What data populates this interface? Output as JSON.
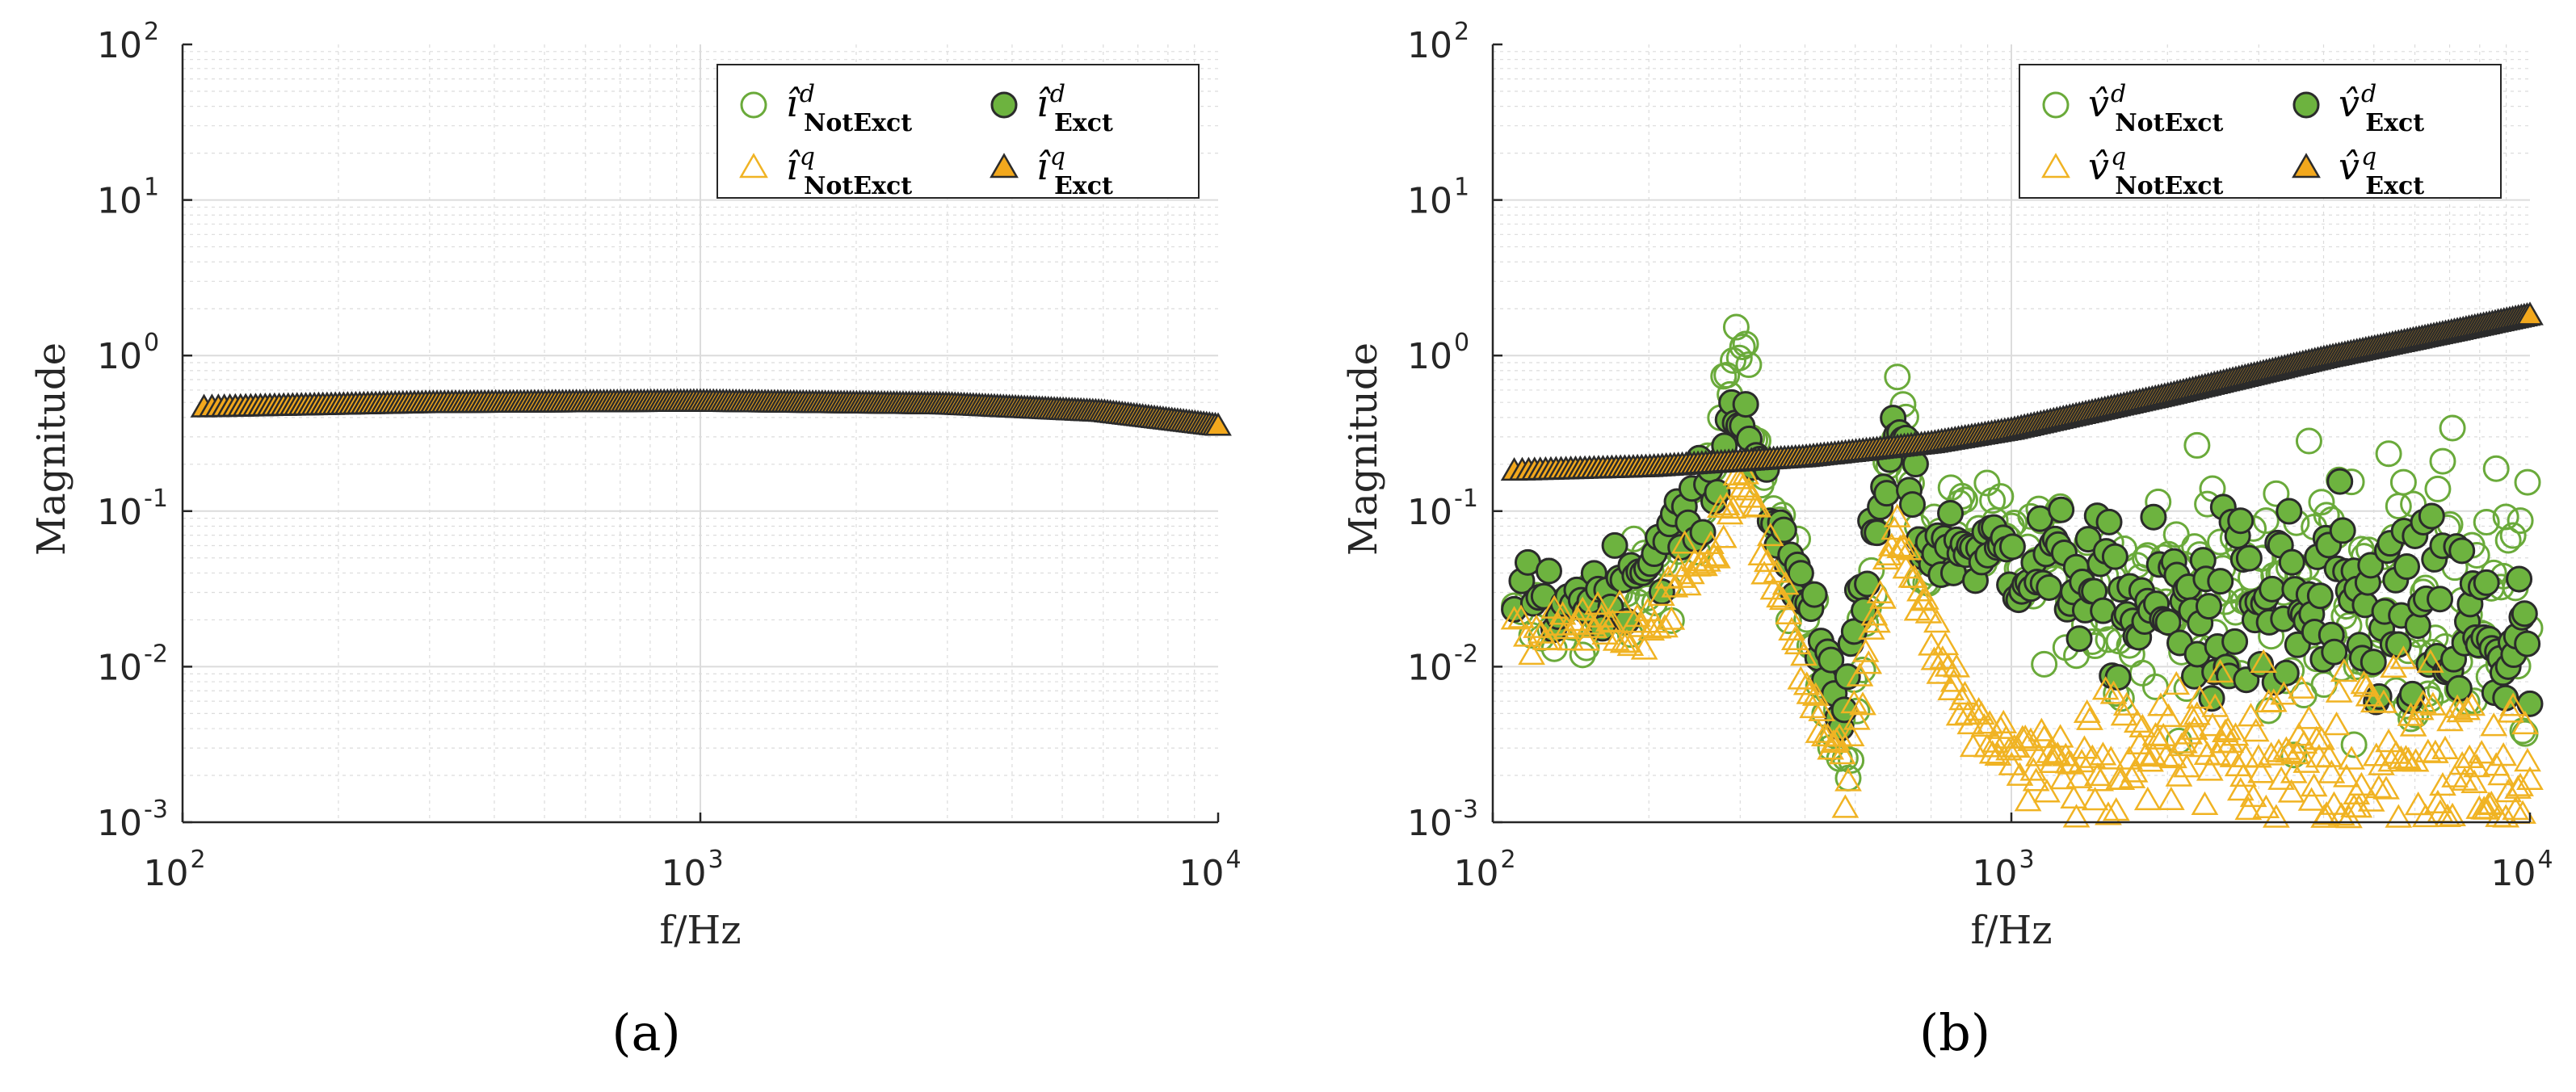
{
  "colors": {
    "green": "#6aaa3a",
    "green_fill": "#6db33f",
    "orange": "#f0b323",
    "orange_fill": "#f2a81d",
    "edge": "#2b2b2b",
    "grid": "#dcdcdc",
    "axis": "#262626"
  },
  "chart_data": [
    {
      "panel": "a",
      "type": "scatter",
      "caption": "(a)",
      "xscale": "log",
      "yscale": "log",
      "xlim": [
        100,
        10000
      ],
      "ylim": [
        0.001,
        100
      ],
      "xlabel": "f/Hz",
      "ylabel": "Magnitude",
      "x_ticks": [
        {
          "base": "10",
          "exp": "2"
        },
        {
          "base": "10",
          "exp": "3"
        },
        {
          "base": "10",
          "exp": "4"
        }
      ],
      "y_ticks": [
        {
          "base": "10",
          "exp": "-3"
        },
        {
          "base": "10",
          "exp": "-2"
        },
        {
          "base": "10",
          "exp": "-1"
        },
        {
          "base": "10",
          "exp": "0"
        },
        {
          "base": "10",
          "exp": "1"
        },
        {
          "base": "10",
          "exp": "2"
        }
      ],
      "grid": true,
      "legend_position": "top-right",
      "legend": [
        {
          "symbol": "î",
          "sup": "d",
          "sub": "NotExct",
          "marker": "circle-open"
        },
        {
          "symbol": "î",
          "sup": "d",
          "sub": "Exct",
          "marker": "circle-filled"
        },
        {
          "symbol": "î",
          "sup": "q",
          "sub": "NotExct",
          "marker": "triangle-open"
        },
        {
          "symbol": "î",
          "sup": "q",
          "sub": "Exct",
          "marker": "triangle-filled"
        }
      ],
      "series": [
        {
          "name": "i_q_Exct",
          "marker": "triangle-filled",
          "x_start": 110,
          "x_end": 10000,
          "count": 300,
          "y_points": [
            [
              110,
              0.46
            ],
            [
              300,
              0.49
            ],
            [
              1000,
              0.5
            ],
            [
              3000,
              0.48
            ],
            [
              6000,
              0.43
            ],
            [
              10000,
              0.35
            ]
          ]
        },
        {
          "name": "i_q_NotExct",
          "marker": "triangle-open",
          "note": "overlapped by Exct markers",
          "x_start": 110,
          "x_end": 10000,
          "count": 0,
          "y_points": []
        },
        {
          "name": "i_d_Exct",
          "marker": "circle-filled",
          "note": "below axis range",
          "x_start": 110,
          "x_end": 10000,
          "count": 0,
          "y_points": []
        },
        {
          "name": "i_d_NotExct",
          "marker": "circle-open",
          "note": "below axis range",
          "x_start": 110,
          "x_end": 10000,
          "count": 0,
          "y_points": []
        }
      ]
    },
    {
      "panel": "b",
      "type": "scatter",
      "caption": "(b)",
      "xscale": "log",
      "yscale": "log",
      "xlim": [
        100,
        10000
      ],
      "ylim": [
        0.001,
        100
      ],
      "xlabel": "f/Hz",
      "ylabel": "Magnitude",
      "x_ticks": [
        {
          "base": "10",
          "exp": "2"
        },
        {
          "base": "10",
          "exp": "3"
        },
        {
          "base": "10",
          "exp": "4"
        }
      ],
      "y_ticks": [
        {
          "base": "10",
          "exp": "-3"
        },
        {
          "base": "10",
          "exp": "-2"
        },
        {
          "base": "10",
          "exp": "-1"
        },
        {
          "base": "10",
          "exp": "0"
        },
        {
          "base": "10",
          "exp": "1"
        },
        {
          "base": "10",
          "exp": "2"
        }
      ],
      "grid": true,
      "legend_position": "top-right",
      "legend": [
        {
          "symbol": "v̂",
          "sup": "d",
          "sub": "NotExct",
          "marker": "circle-open"
        },
        {
          "symbol": "v̂",
          "sup": "d",
          "sub": "Exct",
          "marker": "circle-filled"
        },
        {
          "symbol": "v̂",
          "sup": "q",
          "sub": "NotExct",
          "marker": "triangle-open"
        },
        {
          "symbol": "v̂",
          "sup": "q",
          "sub": "Exct",
          "marker": "triangle-filled"
        }
      ],
      "series": [
        {
          "name": "v_q_Exct",
          "marker": "triangle-filled",
          "x_start": 110,
          "x_end": 10000,
          "count": 300,
          "y_points": [
            [
              110,
              0.18
            ],
            [
              200,
              0.19
            ],
            [
              400,
              0.22
            ],
            [
              700,
              0.27
            ],
            [
              1000,
              0.33
            ],
            [
              2000,
              0.55
            ],
            [
              4000,
              0.95
            ],
            [
              7000,
              1.4
            ],
            [
              10000,
              1.8
            ]
          ]
        },
        {
          "name": "v_q_NotExct",
          "marker": "triangle-open",
          "x_start": 110,
          "x_end": 10000,
          "count": 360,
          "y_points": [
            [
              110,
              0.014
            ],
            [
              200,
              0.02
            ],
            [
              260,
              0.05
            ],
            [
              300,
              0.16
            ],
            [
              340,
              0.05
            ],
            [
              420,
              0.006
            ],
            [
              480,
              0.002
            ],
            [
              560,
              0.03
            ],
            [
              600,
              0.1
            ],
            [
              680,
              0.02
            ],
            [
              850,
              0.004
            ],
            [
              1100,
              0.0025
            ],
            [
              1350,
              0.002
            ],
            [
              1500,
              0.0025
            ],
            [
              2000,
              0.003
            ],
            [
              5000,
              0.003
            ],
            [
              10000,
              0.002
            ]
          ],
          "spread": 0.55
        },
        {
          "name": "v_d_Exct",
          "marker": "circle-filled",
          "x_start": 110,
          "x_end": 10000,
          "count": 320,
          "y_points": [
            [
              110,
              0.025
            ],
            [
              160,
              0.03
            ],
            [
              200,
              0.05
            ],
            [
              260,
              0.12
            ],
            [
              300,
              0.6
            ],
            [
              340,
              0.1
            ],
            [
              400,
              0.03
            ],
            [
              470,
              0.006
            ],
            [
              530,
              0.04
            ],
            [
              600,
              0.35
            ],
            [
              680,
              0.06
            ],
            [
              800,
              0.06
            ],
            [
              1000,
              0.05
            ],
            [
              1300,
              0.04
            ],
            [
              1600,
              0.025
            ],
            [
              3000,
              0.022
            ],
            [
              6000,
              0.02
            ],
            [
              10000,
              0.012
            ]
          ],
          "spread": 0.7
        },
        {
          "name": "v_d_NotExct",
          "marker": "circle-open",
          "x_start": 110,
          "x_end": 10000,
          "count": 360,
          "y_points": [
            [
              110,
              0.017
            ],
            [
              180,
              0.025
            ],
            [
              250,
              0.08
            ],
            [
              300,
              1.2
            ],
            [
              350,
              0.08
            ],
            [
              430,
              0.01
            ],
            [
              480,
              0.003
            ],
            [
              550,
              0.05
            ],
            [
              600,
              0.6
            ],
            [
              680,
              0.05
            ],
            [
              800,
              0.08
            ],
            [
              1000,
              0.05
            ],
            [
              1500,
              0.03
            ],
            [
              3000,
              0.03
            ],
            [
              6000,
              0.03
            ],
            [
              10000,
              0.02
            ]
          ],
          "spread": 0.9
        }
      ]
    }
  ]
}
